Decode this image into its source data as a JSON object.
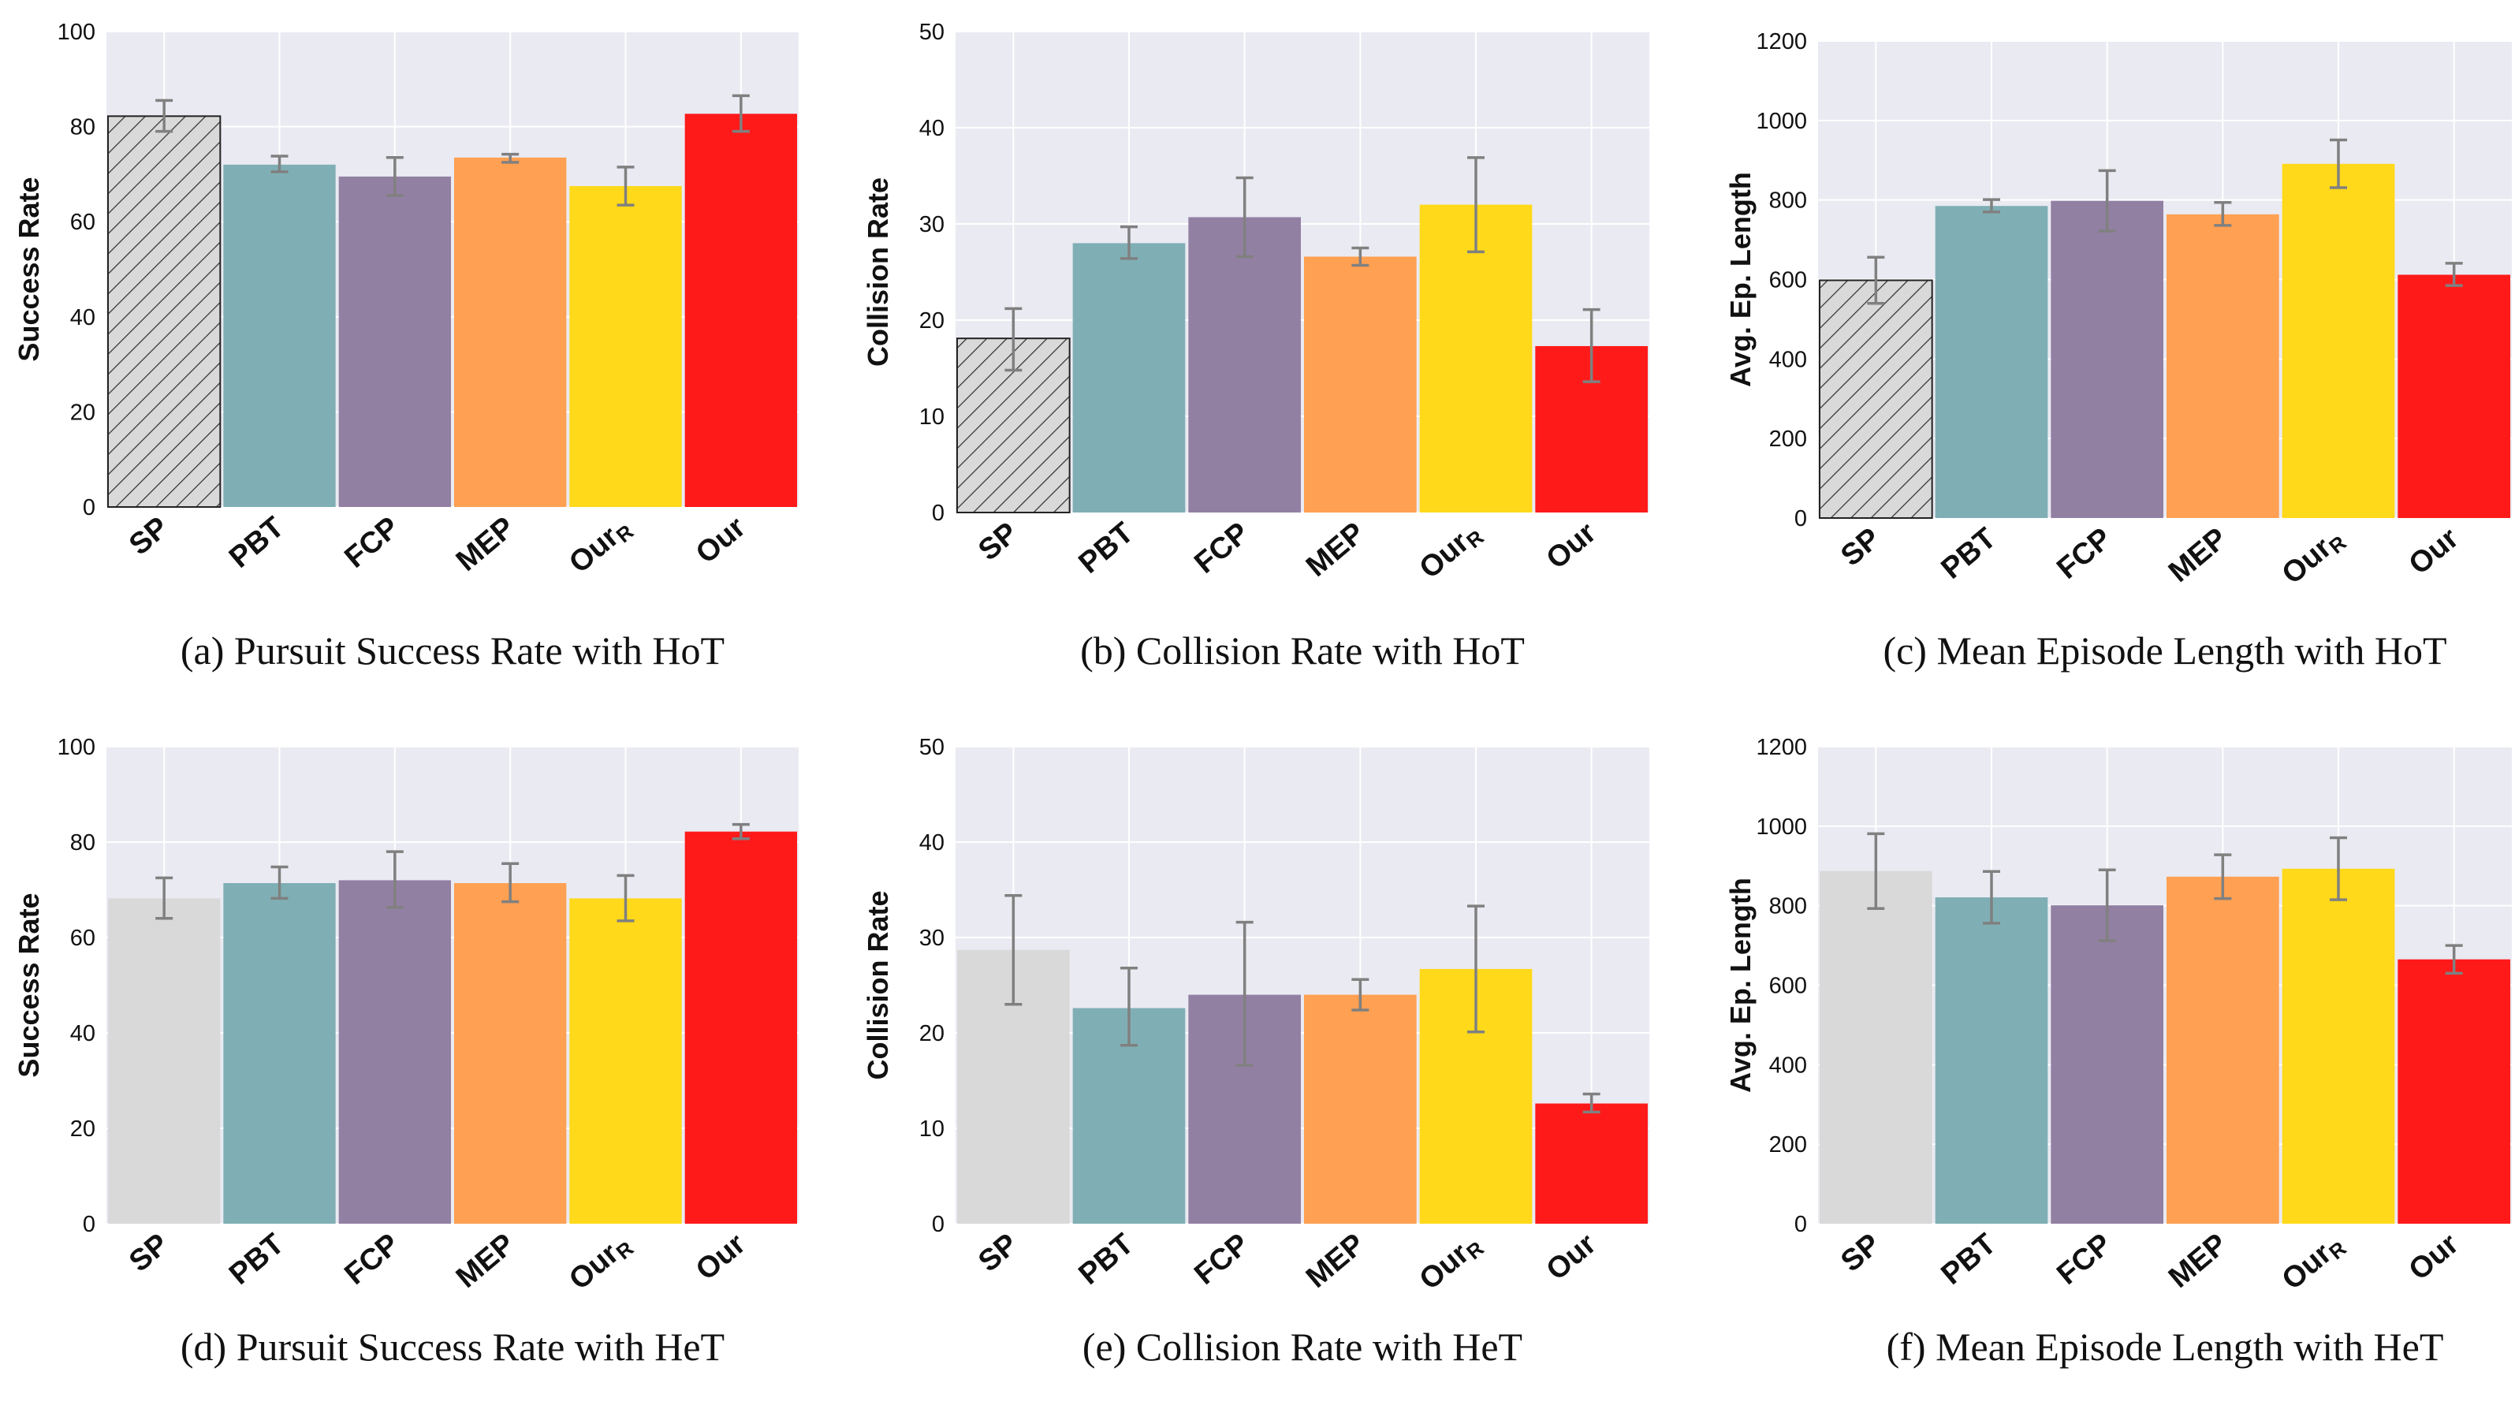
{
  "colors": {
    "panel_bg": "#eaeaf2",
    "grid": "#ffffff",
    "error_bar": "#808080",
    "series": [
      "#d9d9d9",
      "#7fafb5",
      "#9280a3",
      "#ffa052",
      "#ffd91a",
      "#ff1a1a"
    ]
  },
  "chart_data": [
    {
      "id": "a",
      "type": "bar",
      "caption": "(a)  Pursuit Success Rate with HoT",
      "ylabel": "Success Rate",
      "ylim": [
        0,
        100
      ],
      "yticks": [
        0,
        20,
        40,
        60,
        80,
        100
      ],
      "categories": [
        "SP",
        "PBT",
        "FCP",
        "MEP",
        "Our_R",
        "Our"
      ],
      "values": [
        82.2,
        72,
        69.5,
        73.5,
        67.5,
        82.7
      ],
      "err_low": [
        79,
        70.5,
        65.5,
        72.5,
        63.5,
        79
      ],
      "err_high": [
        85.5,
        73.8,
        73.5,
        74.2,
        71.5,
        86.5
      ],
      "hatched": [
        true,
        false,
        false,
        false,
        false,
        false
      ]
    },
    {
      "id": "b",
      "type": "bar",
      "caption": "(b)  Collision Rate with HoT",
      "ylabel": "Collision Rate",
      "ylim": [
        0,
        50
      ],
      "yticks": [
        0,
        10,
        20,
        30,
        40,
        50
      ],
      "categories": [
        "SP",
        "PBT",
        "FCP",
        "MEP",
        "Our_R",
        "Our"
      ],
      "values": [
        18.1,
        28,
        30.7,
        26.6,
        32,
        17.3
      ],
      "err_low": [
        14.8,
        26.4,
        26.6,
        25.7,
        27.1,
        13.6
      ],
      "err_high": [
        21.2,
        29.7,
        34.8,
        27.5,
        36.9,
        21.1
      ],
      "hatched": [
        true,
        false,
        false,
        false,
        false,
        false
      ]
    },
    {
      "id": "c",
      "type": "bar",
      "caption": "(c)  Mean Episode Length with HoT",
      "ylabel": "Avg. Ep. Length",
      "ylim": [
        0,
        1200
      ],
      "yticks": [
        0,
        200,
        400,
        600,
        800,
        1000,
        1200
      ],
      "categories": [
        "SP",
        "PBT",
        "FCP",
        "MEP",
        "Our_R",
        "Our"
      ],
      "values": [
        598,
        785,
        798,
        764,
        891,
        612
      ],
      "err_low": [
        540,
        770,
        722,
        736,
        831,
        585
      ],
      "err_high": [
        656,
        801,
        874,
        794,
        951,
        641
      ],
      "hatched": [
        true,
        false,
        false,
        false,
        false,
        false
      ]
    },
    {
      "id": "d",
      "type": "bar",
      "caption": "(d)  Pursuit Success Rate with HeT",
      "ylabel": "Success Rate",
      "ylim": [
        0,
        100
      ],
      "yticks": [
        0,
        20,
        40,
        60,
        80,
        100
      ],
      "categories": [
        "SP",
        "PBT",
        "FCP",
        "MEP",
        "Our_R",
        "Our"
      ],
      "values": [
        68.2,
        71.4,
        72,
        71.4,
        68.2,
        82.2
      ],
      "err_low": [
        64,
        68.2,
        66.3,
        67.5,
        63.5,
        80.7
      ],
      "err_high": [
        72.5,
        74.8,
        78,
        75.5,
        73,
        83.7
      ],
      "hatched": [
        false,
        false,
        false,
        false,
        false,
        false
      ]
    },
    {
      "id": "e",
      "type": "bar",
      "caption": "(e)  Collision Rate with HeT",
      "ylabel": "Collision Rate",
      "ylim": [
        0,
        50
      ],
      "yticks": [
        0,
        10,
        20,
        30,
        40,
        50
      ],
      "categories": [
        "SP",
        "PBT",
        "FCP",
        "MEP",
        "Our_R",
        "Our"
      ],
      "values": [
        28.7,
        22.6,
        24,
        24,
        26.7,
        12.6
      ],
      "err_low": [
        23,
        18.7,
        16.6,
        22.4,
        20.1,
        11.7
      ],
      "err_high": [
        34.4,
        26.8,
        31.6,
        25.6,
        33.3,
        13.6
      ],
      "hatched": [
        false,
        false,
        false,
        false,
        false,
        false
      ]
    },
    {
      "id": "f",
      "type": "bar",
      "caption": "(f)  Mean Episode Length with HeT",
      "ylabel": "Avg. Ep. Length",
      "ylim": [
        0,
        1200
      ],
      "yticks": [
        0,
        200,
        400,
        600,
        800,
        1000,
        1200
      ],
      "categories": [
        "SP",
        "PBT",
        "FCP",
        "MEP",
        "Our_R",
        "Our"
      ],
      "values": [
        887,
        821,
        801,
        873,
        893,
        665
      ],
      "err_low": [
        793,
        756,
        712,
        818,
        815,
        630
      ],
      "err_high": [
        981,
        886,
        890,
        928,
        971,
        700
      ],
      "hatched": [
        false,
        false,
        false,
        false,
        false,
        false
      ]
    }
  ]
}
